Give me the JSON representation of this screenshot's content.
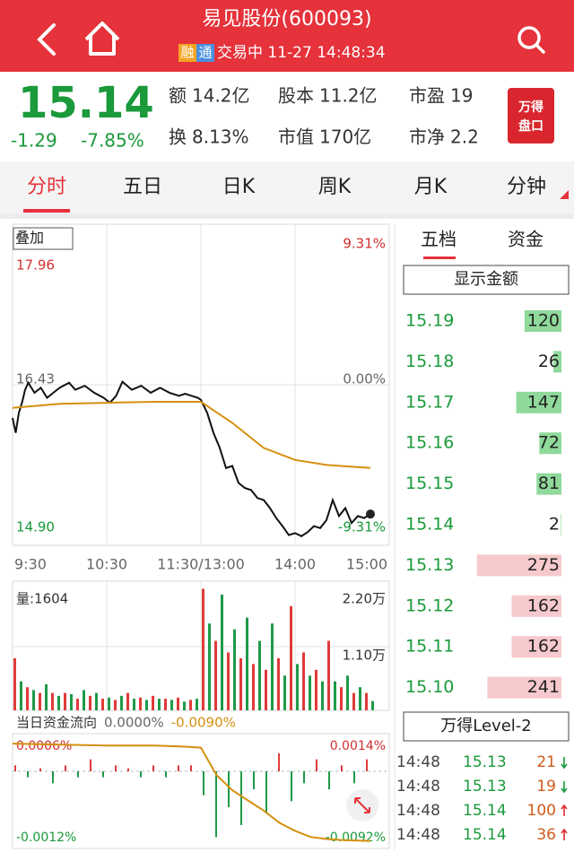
{
  "header": {
    "title": "易见股份(600093)",
    "badge_1": "融",
    "badge_2": "通",
    "status": "交易中 11-27 14:48:34"
  },
  "quote": {
    "price": "15.14",
    "change": "-1.29",
    "change_pct": "-7.85%",
    "stats": [
      [
        "额",
        "14.2亿"
      ],
      [
        "股本",
        "11.2亿"
      ],
      [
        "市盈",
        "19"
      ],
      [
        "换",
        "8.13%"
      ],
      [
        "市值",
        "170亿"
      ],
      [
        "市净",
        "2.2"
      ]
    ],
    "badge": [
      "万得",
      "盘口"
    ]
  },
  "tabs": {
    "items": [
      "分时",
      "五日",
      "日K",
      "周K",
      "月K",
      "分钟"
    ],
    "active": 0
  },
  "chart_data": [
    {
      "type": "line",
      "button": "叠加",
      "xlim": [
        0,
        240
      ],
      "xticks": [
        {
          "value": 0,
          "label": "9:30"
        },
        {
          "value": 60,
          "label": "10:30"
        },
        {
          "value": 120,
          "label": "11:30/13:00"
        },
        {
          "value": 180,
          "label": "14:00"
        },
        {
          "value": 240,
          "label": "15:00"
        }
      ],
      "ylim": [
        14.9,
        17.96
      ],
      "yticks": [
        17.96,
        16.43,
        {
          "value": 14.9,
          "label": "14.90"
        }
      ],
      "y2lim": [
        -9.31,
        9.31
      ],
      "y2ticks": [
        {
          "value": 9.31,
          "label": "9.31%"
        },
        {
          "value": 0,
          "label": "0.00%"
        },
        {
          "value": -9.31,
          "label": "-9.31%"
        }
      ],
      "series": [
        {
          "color": "#111111",
          "x": [
            0,
            2,
            4,
            6,
            8,
            10,
            14,
            18,
            22,
            26,
            30,
            36,
            40,
            46,
            52,
            58,
            62,
            66,
            70,
            76,
            82,
            88,
            94,
            100,
            106,
            110,
            114,
            118,
            120,
            124,
            128,
            132,
            136,
            140,
            144,
            148,
            152,
            156,
            160,
            164,
            168,
            172,
            176,
            180,
            184,
            188,
            192,
            196,
            200,
            204,
            208,
            212,
            216,
            220,
            224,
            228
          ],
          "values": [
            16.1,
            15.95,
            16.15,
            16.25,
            16.38,
            16.45,
            16.35,
            16.4,
            16.3,
            16.35,
            16.4,
            16.45,
            16.38,
            16.42,
            16.35,
            16.3,
            16.25,
            16.32,
            16.46,
            16.38,
            16.42,
            16.35,
            16.4,
            16.35,
            16.32,
            16.34,
            16.32,
            16.3,
            16.28,
            16.15,
            15.95,
            15.8,
            15.6,
            15.62,
            15.45,
            15.4,
            15.38,
            15.3,
            15.28,
            15.2,
            15.1,
            15.02,
            14.93,
            14.95,
            14.92,
            14.96,
            15.02,
            15.0,
            15.08,
            15.28,
            15.12,
            15.2,
            15.05,
            15.12,
            15.1,
            15.14
          ]
        },
        {
          "color": "#d4900f",
          "x": [
            0,
            30,
            60,
            90,
            120,
            140,
            160,
            180,
            200,
            228
          ],
          "values": [
            16.2,
            16.24,
            16.25,
            16.26,
            16.26,
            16.05,
            15.8,
            15.68,
            15.63,
            15.6
          ]
        }
      ]
    },
    {
      "type": "bar",
      "title": "量:1604",
      "xlim": [
        0,
        240
      ],
      "ylim": [
        0,
        22000
      ],
      "yticks": [
        {
          "value": 22000,
          "label": "2.20万"
        },
        {
          "value": 11000,
          "label": "1.10万"
        }
      ],
      "colors": [
        "#e03a3a",
        "#1f9a48"
      ],
      "x": [
        0,
        4,
        8,
        12,
        16,
        20,
        24,
        28,
        32,
        36,
        40,
        44,
        48,
        52,
        56,
        60,
        64,
        68,
        72,
        76,
        80,
        84,
        88,
        92,
        96,
        100,
        104,
        108,
        112,
        116,
        120,
        124,
        128,
        132,
        136,
        140,
        144,
        148,
        152,
        156,
        160,
        164,
        168,
        172,
        176,
        180,
        184,
        188,
        192,
        196,
        200,
        204,
        208,
        212,
        216,
        220,
        224,
        228
      ],
      "values": [
        9000,
        5000,
        4000,
        3500,
        3000,
        4500,
        3000,
        2500,
        3000,
        2800,
        2000,
        3500,
        2500,
        3000,
        2000,
        2200,
        1800,
        2500,
        3000,
        2000,
        2200,
        1800,
        2500,
        2000,
        2000,
        1800,
        2200,
        1500,
        1800,
        2000,
        21000,
        15000,
        12000,
        20000,
        10000,
        14000,
        9000,
        16000,
        8000,
        12000,
        7000,
        15000,
        9000,
        6000,
        18000,
        8000,
        10000,
        6000,
        7000,
        5000,
        12000,
        5000,
        4000,
        6000,
        3000,
        4000,
        3000,
        1604
      ]
    },
    {
      "type": "bar",
      "title": "当日资金流向",
      "legend": [
        {
          "text": "0.0000%",
          "color": "#666666"
        },
        {
          "text": "-0.0090%",
          "color": "#d4900f"
        }
      ],
      "xlim": [
        0,
        240
      ],
      "ylim": [
        -0.0012,
        0.0006
      ],
      "yticks": [
        {
          "value": 0.0006,
          "label": "0.0006%"
        },
        {
          "value": -0.0012,
          "label": "-0.0012%"
        }
      ],
      "y2lim": [
        -0.0092,
        0.0014
      ],
      "y2ticks": [
        {
          "value": 0.0014,
          "label": "0.0014%"
        },
        {
          "value": -0.0092,
          "label": "-0.0092%"
        }
      ],
      "colors": [
        "#e03a3a",
        "#1f9a48"
      ],
      "x": [
        0,
        8,
        16,
        24,
        32,
        40,
        48,
        56,
        64,
        72,
        80,
        88,
        96,
        104,
        112,
        120,
        128,
        136,
        144,
        152,
        160,
        168,
        176,
        184,
        192,
        200,
        208,
        216,
        224
      ],
      "values": [
        0.0001,
        -0.0001,
        5e-05,
        -0.0002,
        0.0001,
        -0.0001,
        0.0002,
        -0.0001,
        0.0001,
        5e-05,
        -0.0001,
        0.0001,
        -0.0001,
        0.0001,
        0.0001,
        -0.0004,
        -0.0011,
        -0.0006,
        -0.0009,
        -0.0003,
        -0.0007,
        0.0003,
        -0.0005,
        -0.0002,
        0.0002,
        -0.0003,
        0.0001,
        -0.0002,
        0.0002
      ],
      "line": {
        "axis": "y2",
        "color": "#d4900f",
        "x": [
          0,
          30,
          60,
          90,
          110,
          120,
          130,
          140,
          150,
          160,
          170,
          180,
          190,
          200,
          210,
          228
        ],
        "values": [
          0.0006,
          0.0005,
          0.0004,
          0.0004,
          0.0003,
          0.0002,
          -0.0025,
          -0.004,
          -0.005,
          -0.006,
          -0.0072,
          -0.008,
          -0.0086,
          -0.0088,
          -0.0089,
          -0.009
        ]
      }
    }
  ],
  "side": {
    "tabs": [
      "五档",
      "资金"
    ],
    "button": "显示金额",
    "book_xlim": [
      0,
      280
    ],
    "book": [
      {
        "price": "15.19",
        "volume": 120,
        "side": "ask"
      },
      {
        "price": "15.18",
        "volume": 26,
        "side": "ask"
      },
      {
        "price": "15.17",
        "volume": 147,
        "side": "ask"
      },
      {
        "price": "15.16",
        "volume": 72,
        "side": "ask"
      },
      {
        "price": "15.15",
        "volume": 81,
        "side": "ask"
      },
      {
        "price": "15.14",
        "volume": 2,
        "side": "ask"
      },
      {
        "price": "15.13",
        "volume": 275,
        "side": "bid"
      },
      {
        "price": "15.12",
        "volume": 162,
        "side": "bid"
      },
      {
        "price": "15.11",
        "volume": 162,
        "side": "bid"
      },
      {
        "price": "15.10",
        "volume": 241,
        "side": "bid"
      }
    ],
    "level2": "万得Level-2",
    "trades": [
      {
        "time": "14:48",
        "price": "15.13",
        "volume": 21,
        "direction": "down"
      },
      {
        "time": "14:48",
        "price": "15.13",
        "volume": 19,
        "direction": "down"
      },
      {
        "time": "14:48",
        "price": "15.14",
        "volume": 100,
        "direction": "up"
      },
      {
        "time": "14:48",
        "price": "15.14",
        "volume": 36,
        "direction": "up"
      }
    ]
  }
}
